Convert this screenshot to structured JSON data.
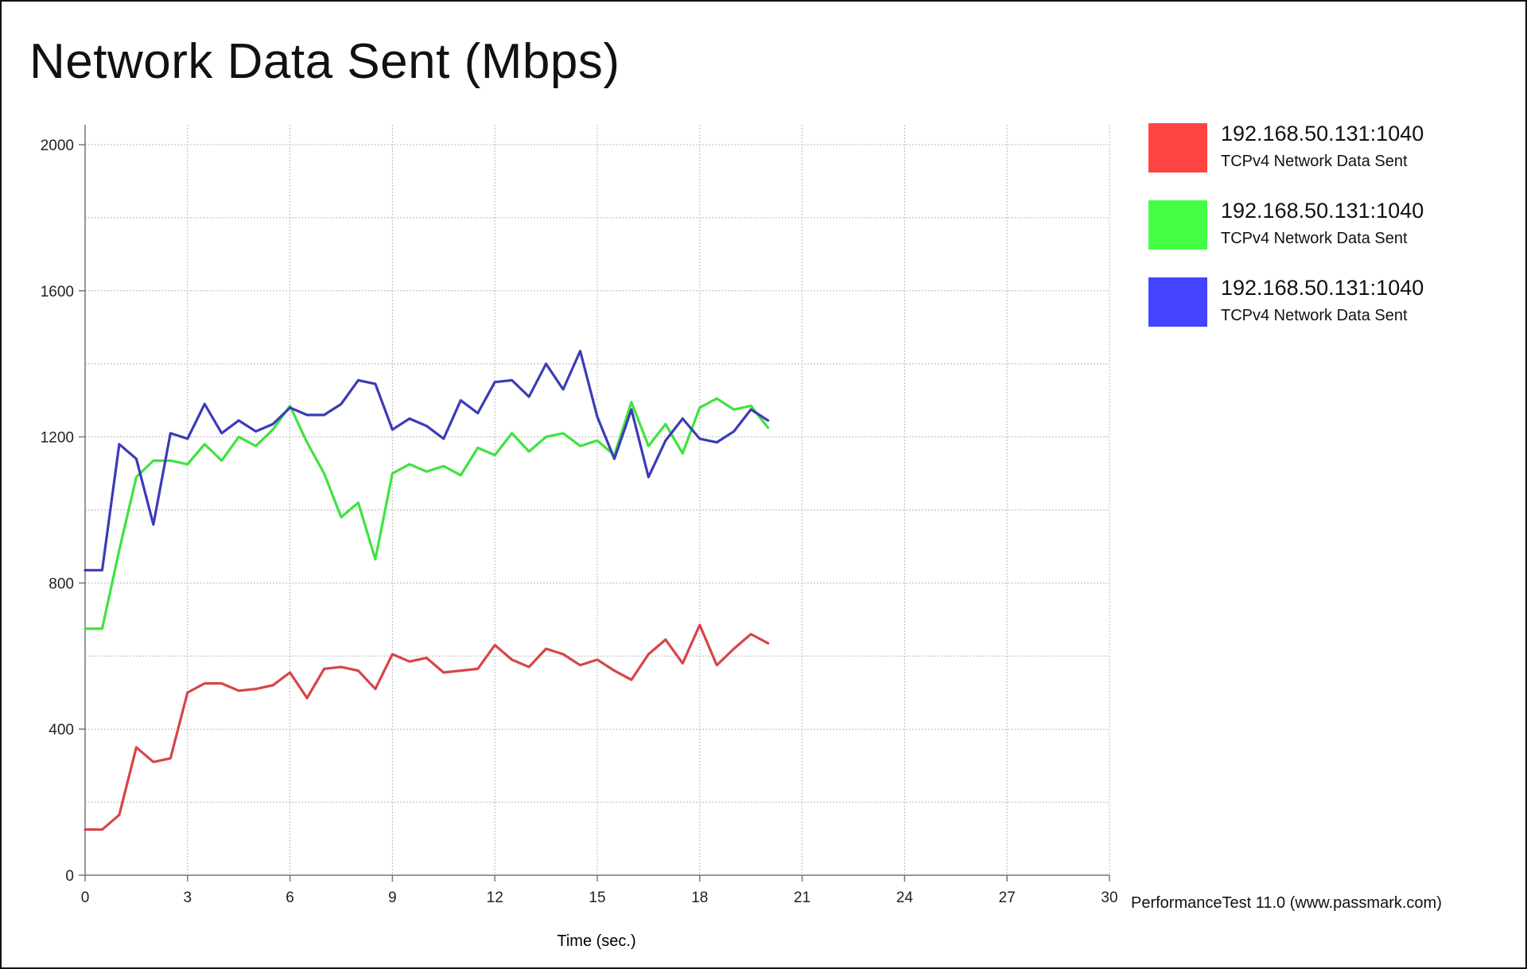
{
  "title": "Network Data Sent (Mbps)",
  "footer": "PerformanceTest 11.0 (www.passmark.com)",
  "colors": {
    "red": "#d6454a",
    "green": "#3fe33f",
    "blue": "#3b3bb8",
    "grid": "#b8b8b8",
    "axis": "#777777"
  },
  "legend": [
    {
      "ip": "192.168.50.131:1040",
      "sub": "TCPv4 Network Data Sent",
      "color": "#ff4444"
    },
    {
      "ip": "192.168.50.131:1040",
      "sub": "TCPv4 Network Data Sent",
      "color": "#44ff44"
    },
    {
      "ip": "192.168.50.131:1040",
      "sub": "TCPv4 Network Data Sent",
      "color": "#4444ff"
    }
  ],
  "chart_data": {
    "type": "line",
    "title": "Network Data Sent (Mbps)",
    "xlabel": "Time (sec.)",
    "ylabel": "",
    "xlim": [
      0,
      30
    ],
    "ylim": [
      0,
      2000
    ],
    "xticks": [
      0,
      3,
      6,
      9,
      12,
      15,
      18,
      21,
      24,
      27,
      30
    ],
    "yticks": [
      0,
      400,
      800,
      1200,
      1600,
      2000
    ],
    "grid": true,
    "legend_position": "top-right",
    "x": [
      0,
      0.5,
      1,
      1.5,
      2,
      2.5,
      3,
      3.5,
      4,
      4.5,
      5,
      5.5,
      6,
      6.5,
      7,
      7.5,
      8,
      8.5,
      9,
      9.5,
      10,
      10.5,
      11,
      11.5,
      12,
      12.5,
      13,
      13.5,
      14,
      14.5,
      15,
      15.5,
      16,
      16.5,
      17,
      17.5,
      18,
      18.5,
      19,
      19.5,
      20
    ],
    "series": [
      {
        "name": "192.168.50.131:1040",
        "color": "#d6454a",
        "values": [
          125,
          125,
          165,
          350,
          310,
          320,
          500,
          525,
          525,
          505,
          510,
          520,
          555,
          485,
          565,
          570,
          560,
          510,
          605,
          585,
          595,
          555,
          560,
          565,
          630,
          590,
          570,
          620,
          605,
          575,
          590,
          560,
          535,
          605,
          645,
          580,
          685,
          575,
          620,
          660,
          635
        ]
      },
      {
        "name": "192.168.50.131:1040",
        "color": "#3fe33f",
        "values": [
          675,
          675,
          890,
          1090,
          1135,
          1135,
          1125,
          1180,
          1135,
          1200,
          1175,
          1220,
          1285,
          1185,
          1100,
          980,
          1020,
          865,
          1100,
          1125,
          1105,
          1120,
          1095,
          1170,
          1150,
          1210,
          1160,
          1200,
          1210,
          1175,
          1190,
          1150,
          1295,
          1175,
          1235,
          1155,
          1280,
          1305,
          1275,
          1285,
          1225
        ]
      },
      {
        "name": "192.168.50.131:1040",
        "color": "#3b3bb8",
        "values": [
          835,
          835,
          1180,
          1140,
          960,
          1210,
          1195,
          1290,
          1210,
          1245,
          1215,
          1235,
          1280,
          1260,
          1260,
          1290,
          1355,
          1345,
          1220,
          1250,
          1230,
          1195,
          1300,
          1265,
          1350,
          1355,
          1310,
          1400,
          1330,
          1435,
          1255,
          1140,
          1275,
          1090,
          1190,
          1250,
          1195,
          1185,
          1215,
          1275,
          1245
        ]
      }
    ]
  }
}
